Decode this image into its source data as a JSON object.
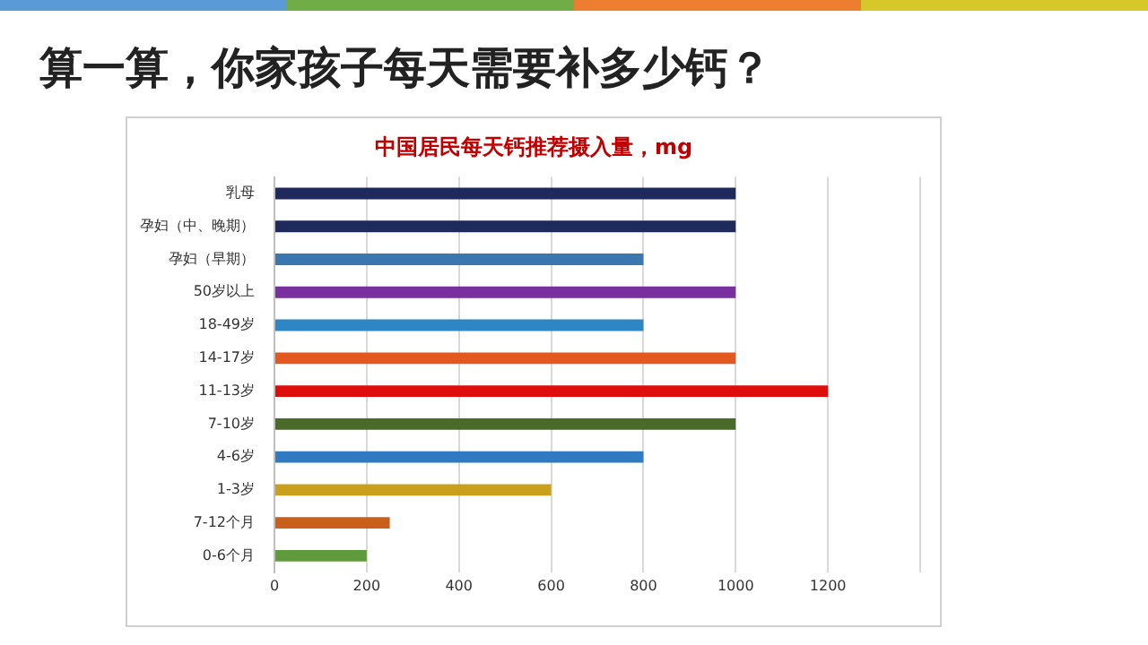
{
  "chart_data": {
    "type": "bar",
    "orientation": "horizontal",
    "title": "算一算，你家孩子每天需要补多少钙？",
    "subtitle": "中国居民每天钙推荐摄入量，mg",
    "categories": [
      "乳母",
      "孕妇（中、晚期）",
      "孕妇（早期）",
      "50岁以上",
      "18-49岁",
      "14-17岁",
      "11-13岁",
      "7-10岁",
      "4-6岁",
      "1-3岁",
      "7-12个月",
      "0-6个月"
    ],
    "values": [
      1000,
      1000,
      800,
      1000,
      800,
      1000,
      1200,
      1000,
      800,
      600,
      250,
      200
    ],
    "colors": [
      "#1f2a5c",
      "#1f2a5c",
      "#3a76b0",
      "#7a2f9e",
      "#2f86c4",
      "#e2581f",
      "#e00d0d",
      "#4a6a2a",
      "#2f7ac0",
      "#c9a01c",
      "#c8601c",
      "#5f9a3c"
    ],
    "xlim": [
      0,
      1400
    ],
    "xticks": [
      0,
      200,
      400,
      600,
      800,
      1000,
      1200,
      {
        "value": 1400,
        "label": null
      }
    ],
    "grid": "x",
    "legend": false
  }
}
